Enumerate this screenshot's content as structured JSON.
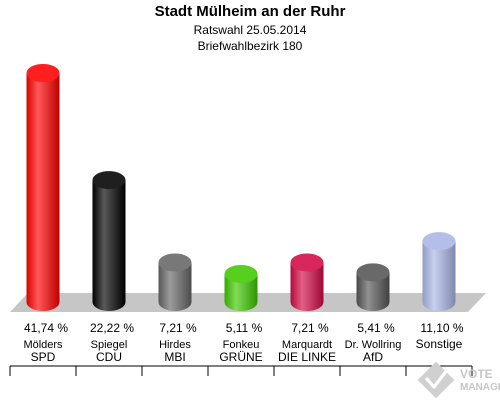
{
  "chart_data": {
    "type": "bar",
    "title": "Stadt Mülheim an der Ruhr",
    "subtitle_1": "Ratswahl 25.05.2014",
    "subtitle_2": "Briefwahlbezirk 180",
    "bars": [
      {
        "candidate": "Mölders",
        "party": "SPD",
        "value": 41.74,
        "label": "41,74 %",
        "color": "#ff0000"
      },
      {
        "candidate": "Spiegel",
        "party": "CDU",
        "value": 22.22,
        "label": "22,22 %",
        "color": "#000000"
      },
      {
        "candidate": "Hirdes",
        "party": "MBI",
        "value": 7.21,
        "label": "7,21 %",
        "color": "#666666"
      },
      {
        "candidate": "Fonkeu",
        "party": "GRÜNE",
        "value": 5.11,
        "label": "5,11 %",
        "color": "#3fc800"
      },
      {
        "candidate": "Marquardt",
        "party": "DIE LINKE",
        "value": 7.21,
        "label": "7,21 %",
        "color": "#d20a46"
      },
      {
        "candidate": "Dr. Wollring",
        "party": "AfD",
        "value": 5.41,
        "label": "5,41 %",
        "color": "#555555"
      },
      {
        "candidate": "",
        "party": "Sonstige",
        "value": 11.1,
        "label": "11,10 %",
        "color": "#aab6e6"
      }
    ]
  },
  "watermark": {
    "line1": "VOTE",
    "line2": "MANAGER",
    "icon": "checkmark-logo-icon"
  }
}
